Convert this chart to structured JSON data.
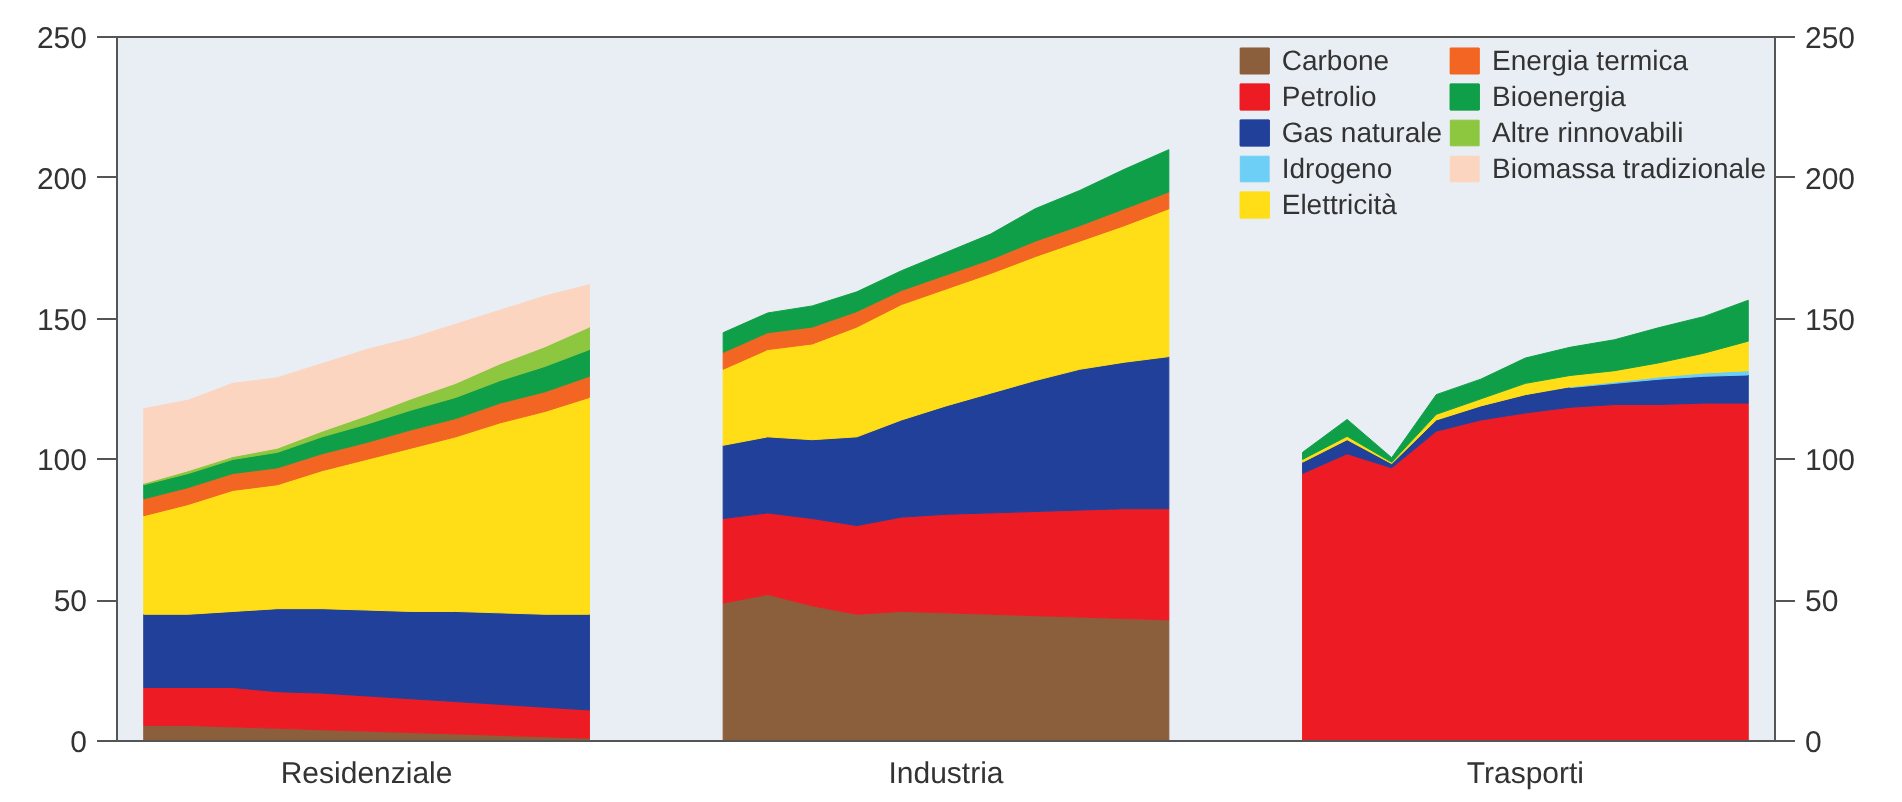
{
  "chart_data": {
    "type": "area",
    "stacked": true,
    "categories": [
      null,
      null,
      null,
      null,
      null,
      "Residenziale",
      null,
      null,
      null,
      null,
      null,
      null,
      null,
      null,
      null,
      null,
      null,
      null,
      "Industria",
      null,
      null,
      null,
      null,
      null,
      null,
      null,
      null,
      null,
      null,
      null,
      null,
      "Trasporti",
      null,
      null,
      null,
      null,
      null
    ],
    "ylim": [
      0,
      250
    ],
    "yticks": [
      0,
      50,
      100,
      150,
      200,
      250
    ],
    "y2lim": [
      0,
      250
    ],
    "y2ticks": [
      0,
      50,
      100,
      150,
      200,
      250
    ],
    "grid": false,
    "legend": "top right",
    "series": [
      {
        "name": "Carbone",
        "color": "#8b5e3c",
        "values": [
          5.5,
          5.5,
          5,
          4.5,
          4,
          3.5,
          3,
          2.5,
          2,
          1.5,
          1,
          null,
          null,
          49,
          52,
          48,
          45,
          46,
          45.5,
          45,
          44.5,
          44,
          43.5,
          43,
          null,
          null,
          null,
          null,
          null,
          null,
          null,
          null,
          null,
          null,
          null,
          null,
          null
        ]
      },
      {
        "name": "Petrolio",
        "color": "#ed1c24",
        "values": [
          13.5,
          13.5,
          14,
          13,
          13,
          12.5,
          12,
          11.5,
          11,
          10.5,
          10,
          null,
          null,
          30,
          29,
          31,
          31.5,
          33.5,
          35,
          36,
          37,
          38,
          39,
          39.5,
          null,
          null,
          95,
          102,
          97,
          110,
          114,
          116.5,
          118.5,
          119.5,
          119.5,
          120,
          120
        ]
      },
      {
        "name": "Gas naturale",
        "color": "#21409a",
        "values": [
          26,
          26,
          27,
          29.5,
          30,
          30.5,
          31,
          32,
          32.5,
          33,
          34,
          null,
          null,
          26,
          27,
          28,
          31.5,
          34.5,
          38.5,
          42.5,
          46.5,
          50,
          52,
          54,
          null,
          null,
          4,
          5,
          1.5,
          4,
          5,
          6.5,
          7,
          7.5,
          9,
          9.5,
          10
        ]
      },
      {
        "name": "Idrogeno",
        "color": "#6dcff6",
        "values": [
          null,
          null,
          null,
          null,
          null,
          null,
          null,
          null,
          null,
          null,
          null,
          null,
          null,
          null,
          null,
          null,
          null,
          null,
          null,
          null,
          null,
          null,
          null,
          null,
          null,
          null,
          null,
          null,
          null,
          null,
          null,
          null,
          0.3,
          0.5,
          0.8,
          1.2,
          1.5
        ]
      },
      {
        "name": "Elettricità",
        "color": "#ffde17",
        "values": [
          35,
          39,
          43,
          44,
          49,
          53.5,
          58,
          62,
          67.5,
          72,
          77,
          null,
          null,
          27,
          31,
          34,
          39,
          41,
          41.5,
          42.5,
          44,
          45.5,
          48.5,
          52.5,
          null,
          null,
          1,
          1.2,
          0.5,
          2,
          2.5,
          4,
          4,
          4,
          5,
          7,
          10.5
        ]
      },
      {
        "name": "Energia termica",
        "color": "#f26522",
        "values": [
          6,
          6,
          6,
          6,
          6,
          6,
          6.5,
          6.5,
          7,
          7,
          7.5,
          null,
          null,
          6,
          6,
          6,
          5.5,
          5,
          5,
          5,
          5.5,
          5.5,
          6,
          6,
          null,
          null,
          null,
          null,
          null,
          null,
          null,
          null,
          null,
          null,
          null,
          null,
          null
        ]
      },
      {
        "name": "Bioenergia",
        "color": "#0f9f49",
        "values": [
          5,
          5,
          5,
          5.5,
          6,
          6.5,
          7,
          7.5,
          8,
          9,
          9.5,
          null,
          null,
          7,
          7,
          7.5,
          7,
          7,
          8,
          9,
          11.5,
          12.5,
          14,
          15,
          null,
          null,
          2.5,
          6,
          1.6,
          7,
          7,
          9,
          10,
          11,
          12.5,
          13,
          14.5
        ]
      },
      {
        "name": "Altre rinnovabili",
        "color": "#8dc63f",
        "values": [
          0.5,
          1,
          1,
          1.5,
          2,
          3,
          4,
          5,
          6,
          7,
          8,
          null,
          null,
          null,
          null,
          null,
          null,
          null,
          null,
          null,
          null,
          null,
          null,
          null,
          null,
          null,
          null,
          null,
          null,
          null,
          null,
          null,
          null,
          null,
          null,
          null,
          null
        ]
      },
      {
        "name": "Biomassa tradizionale",
        "color": "#fcd5c0",
        "values": [
          26.5,
          25,
          26,
          25,
          24,
          23.5,
          21.5,
          21,
          19,
          18,
          15,
          null,
          null,
          null,
          null,
          null,
          null,
          null,
          null,
          null,
          null,
          null,
          null,
          null,
          null,
          null,
          null,
          null,
          null,
          null,
          null,
          null,
          null,
          null,
          null,
          null,
          null
        ]
      }
    ]
  }
}
